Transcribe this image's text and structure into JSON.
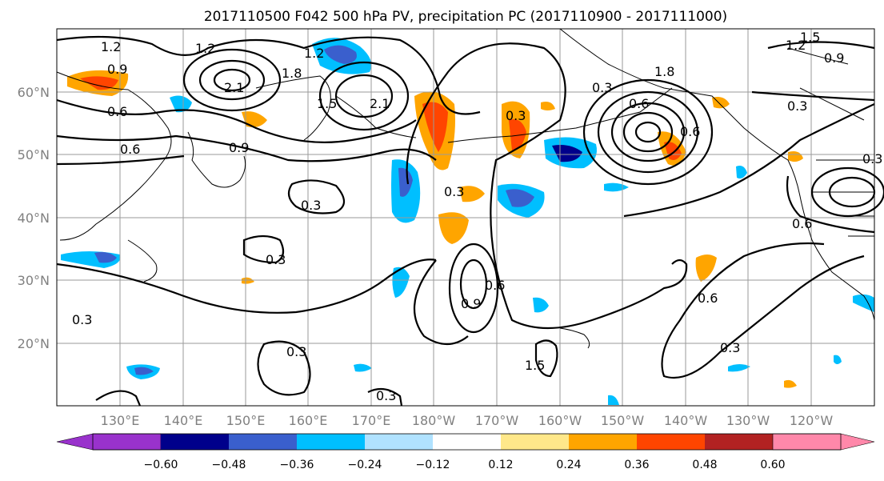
{
  "title": "2017110500 F042 500 hPa PV, precipitation PC (2017110900 - 2017111000)",
  "lat_ticks": [
    "60°N",
    "50°N",
    "40°N",
    "30°N",
    "20°N"
  ],
  "lon_ticks": [
    "130°E",
    "140°E",
    "150°E",
    "160°E",
    "170°E",
    "180°W",
    "170°W",
    "160°W",
    "150°W",
    "140°W",
    "130°W",
    "120°W"
  ],
  "colorbar": {
    "ticks": [
      "−0.60",
      "−0.48",
      "−0.36",
      "−0.24",
      "−0.12",
      "0.12",
      "0.24",
      "0.36",
      "0.48",
      "0.60"
    ],
    "colors": [
      "#9932cc",
      "#00008b",
      "#3a5fcd",
      "#00bfff",
      "#b0e2ff",
      "#ffffff",
      "#ffe88a",
      "#ffa500",
      "#ff4500",
      "#b22222",
      "#ff88aa"
    ]
  },
  "contour_labels": [
    "1.2",
    "0.9",
    "0.6",
    "2.1",
    "1.8",
    "1.5",
    "1.2",
    "2.1",
    "0.9",
    "0.6",
    "1.2",
    "0.3",
    "0.3",
    "0.3",
    "0.6",
    "0.9",
    "0.6",
    "0.3",
    "0.6",
    "0.3",
    "0.3",
    "1.5",
    "1.8",
    "0.6",
    "0.3",
    "1.5",
    "1.2",
    "0.9",
    "0.6",
    "0.3",
    "0.3",
    "0.3",
    "0.3"
  ]
}
